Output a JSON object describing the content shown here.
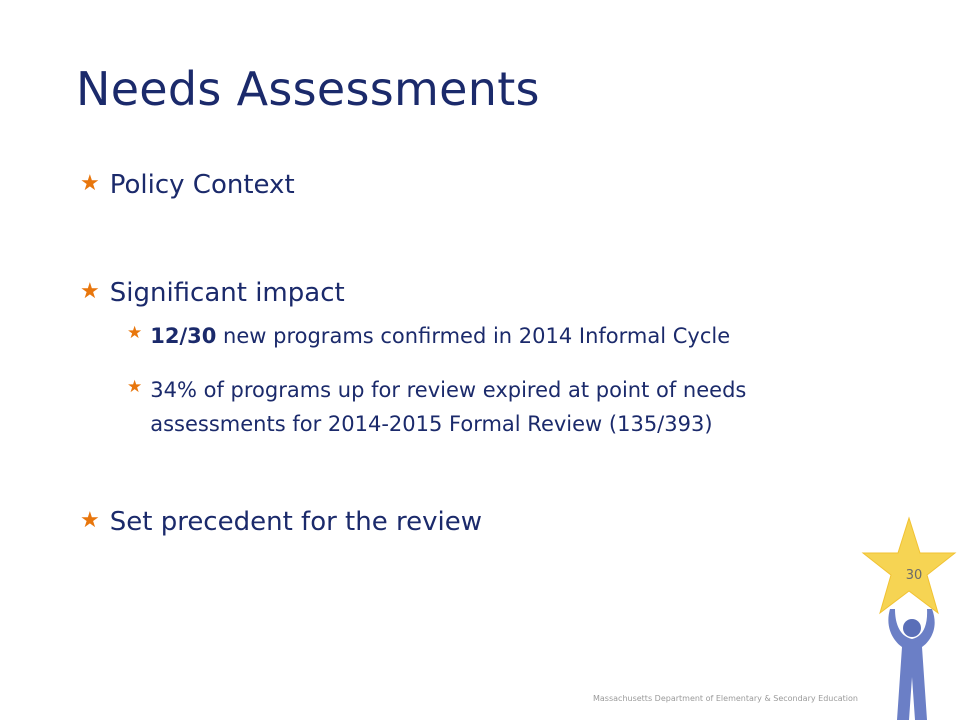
{
  "slide": {
    "title": "Needs Assessments",
    "bullets": {
      "policy_context": "Policy Context",
      "significant_impact": "Significant impact",
      "sub1_bold": "12/30",
      "sub1_rest": " new programs confirmed in 2014 Informal Cycle",
      "sub2": "34% of programs up for review expired at point of needs assessments for 2014-2015 Formal Review (135/393)",
      "set_precedent": "Set precedent for the review"
    },
    "page_number": "30",
    "footer": "Massachusetts Department of Elementary & Secondary Education"
  },
  "colors": {
    "title": "#1b2a6b",
    "bullet_star": "#e8760c",
    "mascot_star": "#f6d453",
    "mascot_figure": "#6b7fc6"
  },
  "icons": {
    "bullet": "star-icon",
    "mascot": "person-holding-star-icon"
  }
}
